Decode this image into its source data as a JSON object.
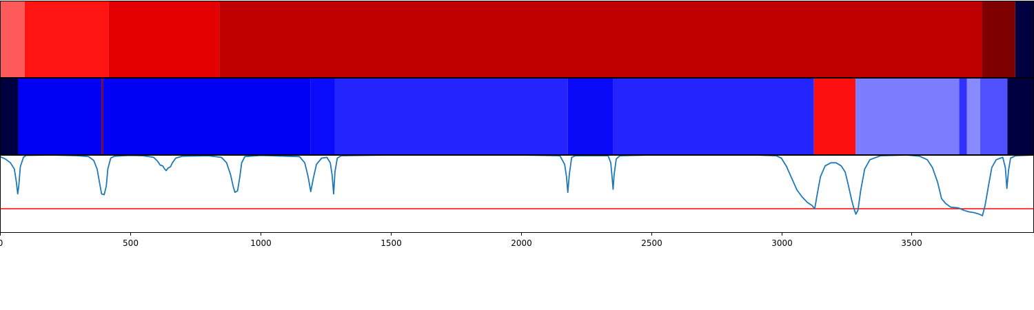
{
  "chart_data": {
    "type": "segmented-tracks-with-line",
    "x_range": [
      0,
      3970
    ],
    "x_ticks": [
      0,
      500,
      1000,
      1500,
      2000,
      2500,
      3000,
      3500
    ],
    "x_tick_labels": [
      "0",
      "500",
      "1000",
      "1500",
      "2000",
      "2500",
      "3000",
      "3500"
    ],
    "tracks": [
      {
        "name": "top-track",
        "segments": [
          {
            "start": 0,
            "end": 95,
            "color": "#ff5a5a"
          },
          {
            "start": 95,
            "end": 418,
            "color": "#ff1414"
          },
          {
            "start": 418,
            "end": 842,
            "color": "#e40000"
          },
          {
            "start": 842,
            "end": 3770,
            "color": "#c00000"
          },
          {
            "start": 3770,
            "end": 3898,
            "color": "#7e0000"
          },
          {
            "start": 3898,
            "end": 3970,
            "color": "#000040"
          }
        ]
      },
      {
        "name": "middle-track",
        "segments": [
          {
            "start": 0,
            "end": 70,
            "color": "#000040"
          },
          {
            "start": 70,
            "end": 390,
            "color": "#0000f4"
          },
          {
            "start": 390,
            "end": 396,
            "color": "#8a0000"
          },
          {
            "start": 396,
            "end": 1193,
            "color": "#0000f4"
          },
          {
            "start": 1193,
            "end": 1285,
            "color": "#0c0cfc"
          },
          {
            "start": 1285,
            "end": 2180,
            "color": "#2424ff"
          },
          {
            "start": 2180,
            "end": 2355,
            "color": "#0a0af8"
          },
          {
            "start": 2355,
            "end": 3125,
            "color": "#2424ff"
          },
          {
            "start": 3125,
            "end": 3285,
            "color": "#ff1010"
          },
          {
            "start": 3285,
            "end": 3683,
            "color": "#7c7cff"
          },
          {
            "start": 3683,
            "end": 3712,
            "color": "#3030ff"
          },
          {
            "start": 3712,
            "end": 3763,
            "color": "#8a8aff"
          },
          {
            "start": 3763,
            "end": 3868,
            "color": "#5050ff"
          },
          {
            "start": 3868,
            "end": 3970,
            "color": "#000040"
          }
        ]
      }
    ],
    "line": {
      "name": "signal",
      "color": "#1f77b4",
      "y_range": [
        0,
        1
      ],
      "threshold": 0.31,
      "threshold_color": "#ff0000",
      "points": [
        [
          0,
          0.98
        ],
        [
          20,
          0.95
        ],
        [
          40,
          0.9
        ],
        [
          55,
          0.82
        ],
        [
          63,
          0.65
        ],
        [
          68,
          0.5
        ],
        [
          72,
          0.6
        ],
        [
          78,
          0.85
        ],
        [
          90,
          0.97
        ],
        [
          100,
          0.995
        ],
        [
          200,
          1.0
        ],
        [
          300,
          0.99
        ],
        [
          340,
          0.98
        ],
        [
          360,
          0.93
        ],
        [
          373,
          0.82
        ],
        [
          382,
          0.65
        ],
        [
          390,
          0.5
        ],
        [
          400,
          0.49
        ],
        [
          408,
          0.6
        ],
        [
          414,
          0.82
        ],
        [
          425,
          0.96
        ],
        [
          440,
          0.985
        ],
        [
          500,
          0.995
        ],
        [
          550,
          0.99
        ],
        [
          590,
          0.97
        ],
        [
          605,
          0.92
        ],
        [
          615,
          0.87
        ],
        [
          625,
          0.86
        ],
        [
          632,
          0.82
        ],
        [
          638,
          0.8
        ],
        [
          645,
          0.83
        ],
        [
          655,
          0.85
        ],
        [
          662,
          0.9
        ],
        [
          675,
          0.96
        ],
        [
          700,
          0.985
        ],
        [
          800,
          0.99
        ],
        [
          850,
          0.97
        ],
        [
          870,
          0.9
        ],
        [
          885,
          0.75
        ],
        [
          895,
          0.6
        ],
        [
          902,
          0.52
        ],
        [
          912,
          0.54
        ],
        [
          920,
          0.7
        ],
        [
          928,
          0.9
        ],
        [
          940,
          0.98
        ],
        [
          1000,
          0.995
        ],
        [
          1150,
          0.98
        ],
        [
          1170,
          0.9
        ],
        [
          1183,
          0.72
        ],
        [
          1193,
          0.53
        ],
        [
          1203,
          0.7
        ],
        [
          1215,
          0.88
        ],
        [
          1235,
          0.96
        ],
        [
          1255,
          0.97
        ],
        [
          1268,
          0.9
        ],
        [
          1275,
          0.75
        ],
        [
          1281,
          0.5
        ],
        [
          1286,
          0.78
        ],
        [
          1295,
          0.96
        ],
        [
          1310,
          0.99
        ],
        [
          1500,
          1.0
        ],
        [
          2000,
          1.0
        ],
        [
          2150,
          0.99
        ],
        [
          2168,
          0.88
        ],
        [
          2175,
          0.72
        ],
        [
          2180,
          0.52
        ],
        [
          2186,
          0.75
        ],
        [
          2195,
          0.97
        ],
        [
          2210,
          0.99
        ],
        [
          2335,
          0.99
        ],
        [
          2345,
          0.9
        ],
        [
          2350,
          0.72
        ],
        [
          2354,
          0.56
        ],
        [
          2358,
          0.75
        ],
        [
          2366,
          0.95
        ],
        [
          2380,
          0.99
        ],
        [
          2500,
          1.0
        ],
        [
          2900,
          1.0
        ],
        [
          2980,
          0.99
        ],
        [
          3000,
          0.96
        ],
        [
          3020,
          0.85
        ],
        [
          3040,
          0.7
        ],
        [
          3060,
          0.55
        ],
        [
          3080,
          0.46
        ],
        [
          3100,
          0.39
        ],
        [
          3118,
          0.35
        ],
        [
          3128,
          0.31
        ],
        [
          3138,
          0.5
        ],
        [
          3150,
          0.72
        ],
        [
          3168,
          0.86
        ],
        [
          3190,
          0.9
        ],
        [
          3210,
          0.9
        ],
        [
          3230,
          0.86
        ],
        [
          3245,
          0.78
        ],
        [
          3258,
          0.6
        ],
        [
          3270,
          0.42
        ],
        [
          3278,
          0.32
        ],
        [
          3286,
          0.24
        ],
        [
          3294,
          0.29
        ],
        [
          3305,
          0.55
        ],
        [
          3320,
          0.82
        ],
        [
          3340,
          0.94
        ],
        [
          3380,
          0.99
        ],
        [
          3480,
          1.0
        ],
        [
          3530,
          0.985
        ],
        [
          3560,
          0.94
        ],
        [
          3580,
          0.84
        ],
        [
          3600,
          0.65
        ],
        [
          3615,
          0.44
        ],
        [
          3630,
          0.38
        ],
        [
          3650,
          0.33
        ],
        [
          3680,
          0.32
        ],
        [
          3700,
          0.29
        ],
        [
          3720,
          0.27
        ],
        [
          3740,
          0.26
        ],
        [
          3760,
          0.24
        ],
        [
          3772,
          0.22
        ],
        [
          3782,
          0.35
        ],
        [
          3795,
          0.6
        ],
        [
          3808,
          0.84
        ],
        [
          3825,
          0.94
        ],
        [
          3850,
          0.97
        ],
        [
          3860,
          0.84
        ],
        [
          3866,
          0.57
        ],
        [
          3872,
          0.8
        ],
        [
          3880,
          0.96
        ],
        [
          3900,
          0.99
        ],
        [
          3970,
          1.0
        ]
      ]
    }
  }
}
